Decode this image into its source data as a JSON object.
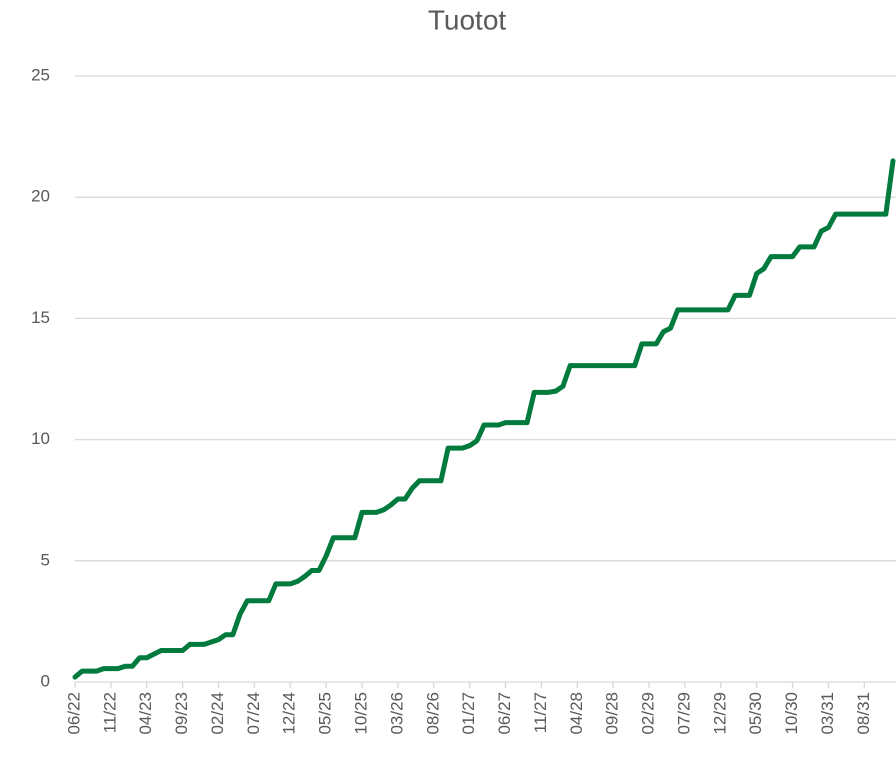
{
  "chart_data": {
    "type": "line",
    "title": "Tuotot",
    "categories": [
      "06/22",
      null,
      null,
      null,
      null,
      "11/22",
      null,
      null,
      null,
      null,
      "04/23",
      null,
      null,
      null,
      null,
      "09/23",
      null,
      null,
      null,
      null,
      "02/24",
      null,
      null,
      null,
      null,
      "07/24",
      null,
      null,
      null,
      null,
      "12/24",
      null,
      null,
      null,
      null,
      "05/25",
      null,
      null,
      null,
      null,
      "10/25",
      null,
      null,
      null,
      null,
      "03/26",
      null,
      null,
      null,
      null,
      "08/26",
      null,
      null,
      null,
      null,
      "01/27",
      null,
      null,
      null,
      null,
      "06/27",
      null,
      null,
      null,
      null,
      "11/27",
      null,
      null,
      null,
      null,
      "04/28",
      null,
      null,
      null,
      null,
      "09/28",
      null,
      null,
      null,
      null,
      "02/29",
      null,
      null,
      null,
      null,
      "07/29",
      null,
      null,
      null,
      null,
      "12/29",
      null,
      null,
      null,
      null,
      "05/30",
      null,
      null,
      null,
      null,
      "10/30",
      null,
      null,
      null,
      null,
      "03/31",
      null,
      null,
      null,
      null,
      "08/31",
      null,
      null,
      null,
      null
    ],
    "values": [
      0.2,
      0.45,
      0.45,
      0.45,
      0.55,
      0.55,
      0.55,
      0.65,
      0.65,
      1.0,
      1.0,
      1.15,
      1.3,
      1.3,
      1.3,
      1.3,
      1.55,
      1.55,
      1.55,
      1.65,
      1.75,
      1.95,
      1.95,
      2.8,
      3.35,
      3.35,
      3.35,
      3.35,
      4.05,
      4.05,
      4.05,
      4.15,
      4.35,
      4.6,
      4.6,
      5.2,
      5.95,
      5.95,
      5.95,
      5.95,
      7.0,
      7.0,
      7.0,
      7.1,
      7.3,
      7.55,
      7.55,
      8.0,
      8.3,
      8.3,
      8.3,
      8.3,
      9.65,
      9.65,
      9.65,
      9.75,
      9.95,
      10.6,
      10.6,
      10.6,
      10.7,
      10.7,
      10.7,
      10.7,
      11.95,
      11.95,
      11.95,
      12.0,
      12.2,
      13.05,
      13.05,
      13.05,
      13.05,
      13.05,
      13.05,
      13.05,
      13.05,
      13.05,
      13.05,
      13.95,
      13.95,
      13.95,
      14.45,
      14.6,
      15.35,
      15.35,
      15.35,
      15.35,
      15.35,
      15.35,
      15.35,
      15.35,
      15.95,
      15.95,
      15.95,
      16.85,
      17.05,
      17.55,
      17.55,
      17.55,
      17.55,
      17.95,
      17.95,
      17.95,
      18.6,
      18.75,
      19.3,
      19.3,
      19.3,
      19.3,
      19.3,
      19.3,
      19.3,
      19.3,
      21.5
    ],
    "color": "#007a3d",
    "ylim": [
      0,
      25
    ],
    "yticks": [
      0,
      5,
      10,
      15,
      20,
      25
    ],
    "grid": true
  }
}
